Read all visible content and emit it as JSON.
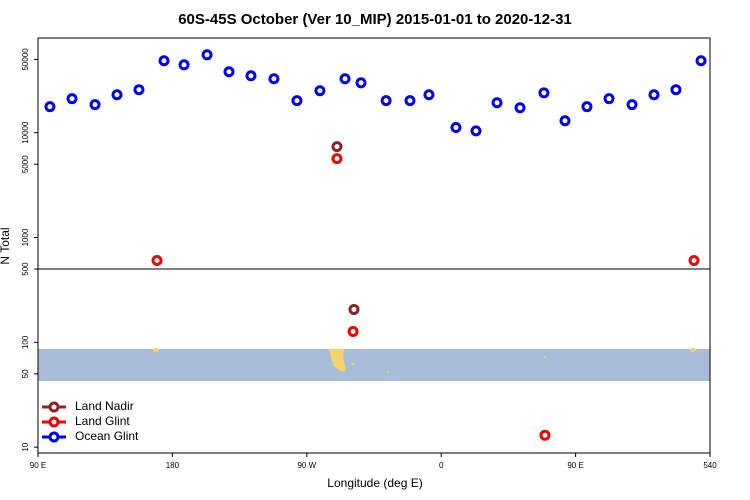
{
  "chart_data": {
    "type": "scatter",
    "title": "60S-45S October (Ver 10_MIP)   2015-01-01 to 2020-12-31",
    "x_label": "Longitude (deg E)",
    "y_label": "N Total",
    "log_y": true,
    "legend": "lower left",
    "xlim": [
      90,
      540
    ],
    "xticks": [
      {
        "value": 90,
        "label": "90 E"
      },
      180,
      {
        "value": 270,
        "label": "90 W"
      },
      {
        "value": 360,
        "label": "0"
      },
      {
        "value": 450,
        "label": "90 E"
      },
      540
    ],
    "ylim": [
      8.8,
      80000
    ],
    "yticks": [
      10,
      50,
      100,
      500,
      1000,
      5000,
      10000,
      50000
    ],
    "series": [
      {
        "name": "Land Nadir",
        "color": "#8b2323",
        "x": [
          290.2,
          301.6
        ],
        "values": [
          7360,
          206
        ]
      },
      {
        "name": "Land Glint",
        "color": "#ee0000",
        "x": [
          169.7,
          290.2,
          301.0,
          429.5,
          529.3
        ],
        "values": [
          604,
          5650,
          127,
          13,
          604
        ]
      },
      {
        "name": "Ocean Glint",
        "color": "#0000ee",
        "x": [
          98.0,
          112.8,
          128.2,
          142.9,
          157.6,
          174.4,
          187.8,
          203.2,
          217.9,
          232.6,
          248.0,
          263.4,
          278.8,
          295.6,
          306.3,
          323.1,
          339.1,
          351.8,
          369.9,
          383.3,
          397.4,
          412.8,
          428.8,
          442.9,
          457.6,
          472.4,
          487.8,
          502.5,
          517.2,
          534.0
        ],
        "values": [
          17700,
          21100,
          18500,
          23000,
          25700,
          48500,
          44400,
          55300,
          38100,
          34900,
          32700,
          20200,
          25100,
          32700,
          29900,
          20200,
          20200,
          23000,
          11200,
          10400,
          19300,
          17300,
          24000,
          13000,
          17700,
          21100,
          18500,
          23000,
          25700,
          48500
        ]
      }
    ]
  }
}
